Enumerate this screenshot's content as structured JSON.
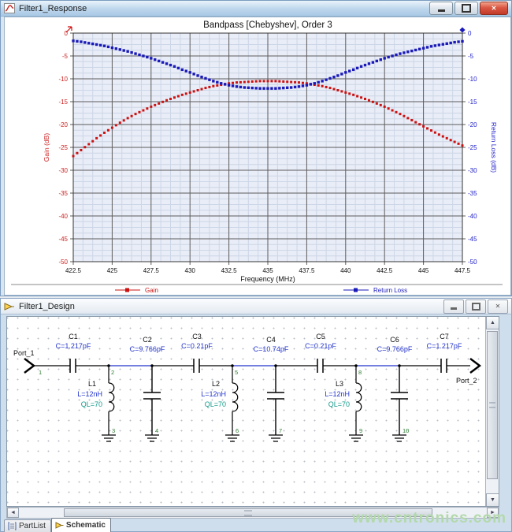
{
  "chart": {
    "window_title": "Filter1_Response",
    "title": "Bandpass [Chebyshev], Order 3",
    "xlabel": "Frequency (MHz)",
    "ylabel_left": "Gain (dB)",
    "ylabel_right": "Return Loss (dB)",
    "x_ticks": [
      "422.5",
      "425",
      "427.5",
      "430",
      "432.5",
      "435",
      "437.5",
      "440",
      "442.5",
      "445",
      "447.5"
    ],
    "y_ticks_left": [
      "0",
      "-5",
      "-10",
      "-15",
      "-20",
      "-25",
      "-30",
      "-35",
      "-40",
      "-45",
      "-50"
    ],
    "y_ticks_right": [
      "0",
      "-5",
      "-10",
      "-15",
      "-20",
      "-25",
      "-30",
      "-35",
      "-40",
      "-45",
      "-50"
    ],
    "legend": [
      {
        "label": "Gain",
        "color": "#cc1111"
      },
      {
        "label": "Return Loss",
        "color": "#1a1ab8"
      }
    ],
    "colors": {
      "plot_bg": "#e9edf7",
      "grid_major": "#5c5c5c",
      "grid_minor": "#ccd6e6",
      "left_axis": "#cc2222",
      "right_axis": "#2222cc"
    }
  },
  "chart_data": {
    "type": "line",
    "marker": "square-dot",
    "grid": true,
    "xlim": [
      422.5,
      447.5
    ],
    "ylim": [
      -50,
      0
    ],
    "x": [
      422.5,
      423,
      423.5,
      424,
      424.5,
      425,
      425.5,
      426,
      426.5,
      427,
      427.5,
      428,
      428.5,
      429,
      429.5,
      430,
      430.5,
      431,
      431.5,
      432,
      432.5,
      433,
      433.5,
      434,
      434.5,
      435,
      435.5,
      436,
      436.5,
      437,
      437.5,
      438,
      438.5,
      439,
      439.5,
      440,
      440.5,
      441,
      441.5,
      442,
      442.5,
      443,
      443.5,
      444,
      444.5,
      445,
      445.5,
      446,
      446.5,
      447,
      447.5
    ],
    "series": [
      {
        "name": "Gain",
        "axis": "left",
        "values": [
          -26.9,
          -25.6,
          -24.3,
          -23.0,
          -21.8,
          -20.7,
          -19.6,
          -18.6,
          -17.7,
          -16.9,
          -16.1,
          -15.4,
          -14.7,
          -14.1,
          -13.5,
          -13.0,
          -12.5,
          -12.0,
          -11.6,
          -11.3,
          -11.0,
          -10.8,
          -10.7,
          -10.6,
          -10.5,
          -10.5,
          -10.5,
          -10.6,
          -10.7,
          -10.8,
          -11.0,
          -11.3,
          -11.6,
          -12.0,
          -12.5,
          -13.0,
          -13.5,
          -14.1,
          -14.7,
          -15.4,
          -16.1,
          -16.9,
          -17.7,
          -18.6,
          -19.5,
          -20.4,
          -21.3,
          -22.2,
          -23.0,
          -23.8,
          -24.6
        ]
      },
      {
        "name": "Return Loss",
        "axis": "right",
        "values": [
          -1.7,
          -1.9,
          -2.2,
          -2.5,
          -2.8,
          -3.2,
          -3.6,
          -4.0,
          -4.5,
          -5.0,
          -5.5,
          -6.1,
          -6.7,
          -7.3,
          -8.0,
          -8.6,
          -9.3,
          -9.9,
          -10.5,
          -11.0,
          -11.4,
          -11.7,
          -11.9,
          -12.0,
          -12.1,
          -12.1,
          -12.1,
          -12.0,
          -11.9,
          -11.7,
          -11.4,
          -11.0,
          -10.5,
          -9.9,
          -9.3,
          -8.6,
          -8.0,
          -7.3,
          -6.7,
          -6.1,
          -5.5,
          -5.0,
          -4.5,
          -4.1,
          -3.7,
          -3.3,
          -2.9,
          -2.6,
          -2.3,
          -2.0,
          -1.8
        ]
      }
    ]
  },
  "design": {
    "window_title": "Filter1_Design",
    "tabs": {
      "partlist": "PartList",
      "schematic": "Schematic"
    },
    "watermark": "www.cntronics.com",
    "glyphs": {
      "close": "✕",
      "up": "▲",
      "down": "▼",
      "left": "◄",
      "right": "►"
    },
    "schematic": {
      "port1": "Port_1",
      "port2": "Port_2",
      "c1": {
        "name": "C1",
        "value": "C=1.217pF"
      },
      "c2": {
        "name": "C2",
        "value": "C=9.766pF"
      },
      "c3": {
        "name": "C3",
        "value": "C=0.21pF"
      },
      "c4": {
        "name": "C4",
        "value": "C=10.74pF"
      },
      "c5": {
        "name": "C5",
        "value": "C=0.21pF"
      },
      "c6": {
        "name": "C6",
        "value": "C=9.766pF"
      },
      "c7": {
        "name": "C7",
        "value": "C=1.217pF"
      },
      "l1": {
        "name": "L1",
        "value": "L=12nH",
        "q": "QL=70"
      },
      "l2": {
        "name": "L2",
        "value": "L=12nH",
        "q": "QL=70"
      },
      "l3": {
        "name": "L3",
        "value": "L=12nH",
        "q": "QL=70"
      },
      "nodes": {
        "n1": "1",
        "n2": "2",
        "n3": "3",
        "n4": "4",
        "n5": "5",
        "n6": "6",
        "n7": "7",
        "n8": "8",
        "n9": "9",
        "n10": "10"
      }
    },
    "colors": {
      "wire": "#000000",
      "net": "#2233cc",
      "value_text": "#2233cc",
      "q_text": "#119988",
      "node_text": "#2e7d32",
      "watermark": "#b3d9ab"
    }
  }
}
